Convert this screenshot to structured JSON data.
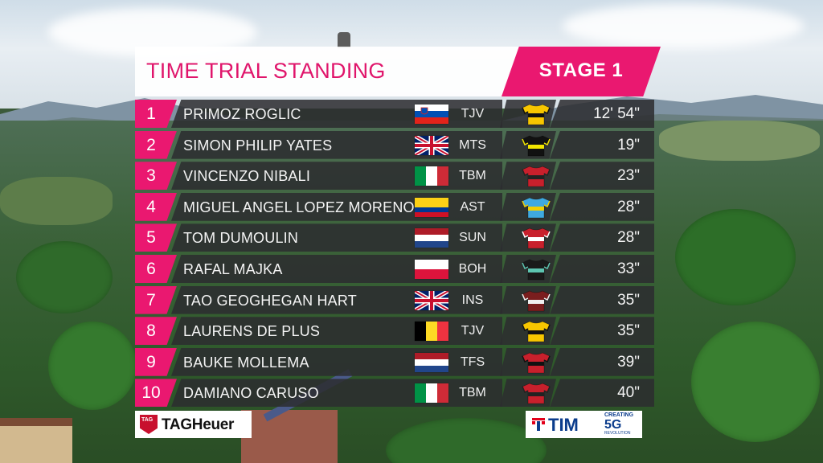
{
  "header": {
    "title": "TIME TRIAL STANDING",
    "stage": "STAGE 1"
  },
  "colors": {
    "accent_pink": "#ea1870",
    "row_bg": "#2c2c30",
    "text_light": "#f4f4f4"
  },
  "standings": [
    {
      "pos": "1",
      "name": "PRIMOZ ROGLIC",
      "flag": "slovenia-flag-icon",
      "team": "TJV",
      "jersey": "jumbo-visma-jersey-icon",
      "time": "12' 54\""
    },
    {
      "pos": "2",
      "name": "SIMON PHILIP YATES",
      "flag": "uk-flag-icon",
      "team": "MTS",
      "jersey": "mitchelton-scott-jersey-icon",
      "time": "19\""
    },
    {
      "pos": "3",
      "name": "VINCENZO NIBALI",
      "flag": "italy-flag-icon",
      "team": "TBM",
      "jersey": "bahrain-merida-jersey-icon",
      "time": "23\""
    },
    {
      "pos": "4",
      "name": "MIGUEL ANGEL LOPEZ MORENO",
      "flag": "colombia-flag-icon",
      "team": "AST",
      "jersey": "astana-jersey-icon",
      "time": "28\""
    },
    {
      "pos": "5",
      "name": "TOM DUMOULIN",
      "flag": "netherlands-flag-icon",
      "team": "SUN",
      "jersey": "sunweb-jersey-icon",
      "time": "28\""
    },
    {
      "pos": "6",
      "name": "RAFAL MAJKA",
      "flag": "poland-flag-icon",
      "team": "BOH",
      "jersey": "bora-hansgrohe-jersey-icon",
      "time": "33\""
    },
    {
      "pos": "7",
      "name": "TAO GEOGHEGAN HART",
      "flag": "uk-flag-icon",
      "team": "INS",
      "jersey": "ineos-jersey-icon",
      "time": "35\""
    },
    {
      "pos": "8",
      "name": "LAURENS DE PLUS",
      "flag": "belgium-flag-icon",
      "team": "TJV",
      "jersey": "jumbo-visma-jersey-icon",
      "time": "35\""
    },
    {
      "pos": "9",
      "name": "BAUKE MOLLEMA",
      "flag": "netherlands-flag-icon",
      "team": "TFS",
      "jersey": "trek-segafredo-jersey-icon",
      "time": "39\""
    },
    {
      "pos": "10",
      "name": "DAMIANO CARUSO",
      "flag": "italy-flag-icon",
      "team": "TBM",
      "jersey": "bahrain-merida-jersey-icon",
      "time": "40\""
    }
  ],
  "sponsors": {
    "left": "TAGHeuer",
    "right": "TIM",
    "right_small_top": "CREATING",
    "right_big": "5G",
    "right_small_bottom": "REVOLUTION"
  }
}
